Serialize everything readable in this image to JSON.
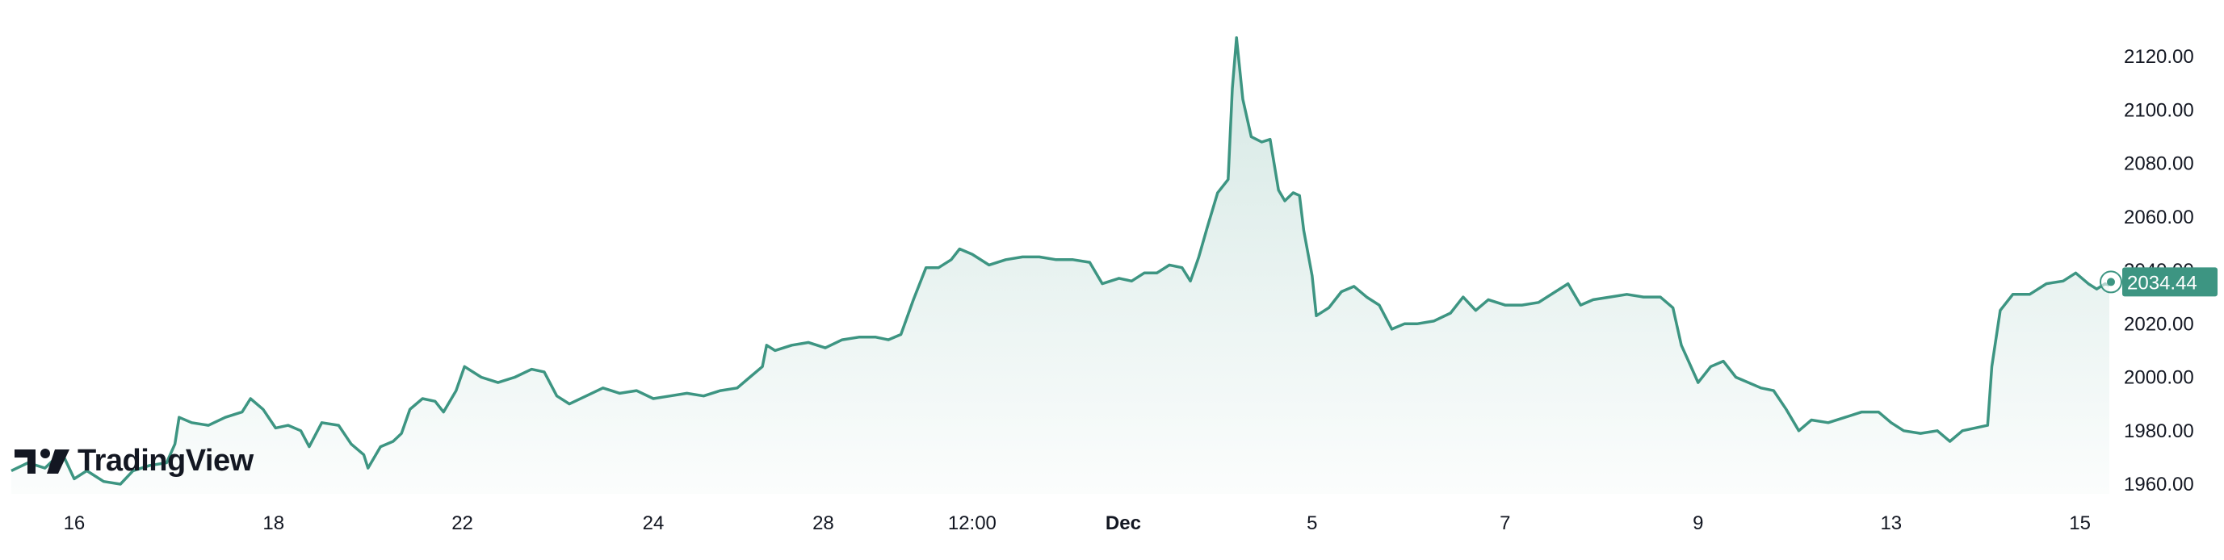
{
  "brand": {
    "name": "TradingView",
    "icon": "tradingview-logo-icon"
  },
  "colors": {
    "line": "#3d9582",
    "fill_top": "#d7ece7",
    "fill_bottom": "#ffffff",
    "label_bg": "#3d9582",
    "text": "#131722"
  },
  "chart_data": {
    "type": "area",
    "title": "",
    "xlabel": "",
    "ylabel": "",
    "ylim": [
      1955,
      2128
    ],
    "y_ticks": [
      "2120.00",
      "2100.00",
      "2080.00",
      "2060.00",
      "2040.00",
      "2020.00",
      "2000.00",
      "1980.00",
      "1960.00"
    ],
    "x_ticks": [
      {
        "label": "16",
        "bold": false,
        "t": 0.03
      },
      {
        "label": "18",
        "bold": false,
        "t": 0.125
      },
      {
        "label": "22",
        "bold": false,
        "t": 0.215
      },
      {
        "label": "24",
        "bold": false,
        "t": 0.306
      },
      {
        "label": "28",
        "bold": false,
        "t": 0.387
      },
      {
        "label": "12:00",
        "bold": false,
        "t": 0.458
      },
      {
        "label": "Dec",
        "bold": true,
        "t": 0.53
      },
      {
        "label": "5",
        "bold": false,
        "t": 0.62
      },
      {
        "label": "7",
        "bold": false,
        "t": 0.712
      },
      {
        "label": "9",
        "bold": false,
        "t": 0.804
      },
      {
        "label": "13",
        "bold": false,
        "t": 0.896
      },
      {
        "label": "15",
        "bold": false,
        "t": 0.986
      }
    ],
    "last_price": "2034.44",
    "series": [
      {
        "values": [
          [
            0.0,
            1965
          ],
          [
            0.008,
            1968
          ],
          [
            0.016,
            1966
          ],
          [
            0.024,
            1972
          ],
          [
            0.03,
            1962
          ],
          [
            0.036,
            1965
          ],
          [
            0.044,
            1961
          ],
          [
            0.052,
            1960
          ],
          [
            0.058,
            1965
          ],
          [
            0.066,
            1967
          ],
          [
            0.074,
            1968
          ],
          [
            0.078,
            1975
          ],
          [
            0.08,
            1985
          ],
          [
            0.086,
            1983
          ],
          [
            0.094,
            1982
          ],
          [
            0.102,
            1985
          ],
          [
            0.11,
            1987
          ],
          [
            0.114,
            1992
          ],
          [
            0.12,
            1988
          ],
          [
            0.126,
            1981
          ],
          [
            0.132,
            1982
          ],
          [
            0.138,
            1980
          ],
          [
            0.142,
            1974
          ],
          [
            0.148,
            1983
          ],
          [
            0.156,
            1982
          ],
          [
            0.162,
            1975
          ],
          [
            0.168,
            1971
          ],
          [
            0.17,
            1966
          ],
          [
            0.176,
            1974
          ],
          [
            0.182,
            1976
          ],
          [
            0.186,
            1979
          ],
          [
            0.19,
            1988
          ],
          [
            0.196,
            1992
          ],
          [
            0.202,
            1991
          ],
          [
            0.206,
            1987
          ],
          [
            0.212,
            1995
          ],
          [
            0.216,
            2004
          ],
          [
            0.224,
            2000
          ],
          [
            0.232,
            1998
          ],
          [
            0.24,
            2000
          ],
          [
            0.248,
            2003
          ],
          [
            0.254,
            2002
          ],
          [
            0.26,
            1993
          ],
          [
            0.266,
            1990
          ],
          [
            0.274,
            1993
          ],
          [
            0.282,
            1996
          ],
          [
            0.29,
            1994
          ],
          [
            0.298,
            1995
          ],
          [
            0.306,
            1992
          ],
          [
            0.314,
            1993
          ],
          [
            0.322,
            1994
          ],
          [
            0.33,
            1993
          ],
          [
            0.338,
            1995
          ],
          [
            0.346,
            1996
          ],
          [
            0.352,
            2000
          ],
          [
            0.358,
            2004
          ],
          [
            0.36,
            2012
          ],
          [
            0.364,
            2010
          ],
          [
            0.372,
            2012
          ],
          [
            0.38,
            2013
          ],
          [
            0.388,
            2011
          ],
          [
            0.396,
            2014
          ],
          [
            0.404,
            2015
          ],
          [
            0.412,
            2015
          ],
          [
            0.418,
            2014
          ],
          [
            0.424,
            2016
          ],
          [
            0.43,
            2029
          ],
          [
            0.436,
            2041
          ],
          [
            0.442,
            2041
          ],
          [
            0.448,
            2044
          ],
          [
            0.452,
            2048
          ],
          [
            0.458,
            2046
          ],
          [
            0.466,
            2042
          ],
          [
            0.474,
            2044
          ],
          [
            0.482,
            2045
          ],
          [
            0.49,
            2045
          ],
          [
            0.498,
            2044
          ],
          [
            0.506,
            2044
          ],
          [
            0.514,
            2043
          ],
          [
            0.52,
            2035
          ],
          [
            0.528,
            2037
          ],
          [
            0.534,
            2036
          ],
          [
            0.54,
            2039
          ],
          [
            0.546,
            2039
          ],
          [
            0.552,
            2042
          ],
          [
            0.558,
            2041
          ],
          [
            0.562,
            2036
          ],
          [
            0.566,
            2045
          ],
          [
            0.57,
            2056
          ],
          [
            0.575,
            2069
          ],
          [
            0.58,
            2074
          ],
          [
            0.582,
            2108
          ],
          [
            0.584,
            2127
          ],
          [
            0.587,
            2104
          ],
          [
            0.591,
            2090
          ],
          [
            0.596,
            2088
          ],
          [
            0.6,
            2089
          ],
          [
            0.604,
            2070
          ],
          [
            0.607,
            2066
          ],
          [
            0.611,
            2069
          ],
          [
            0.614,
            2068
          ],
          [
            0.616,
            2055
          ],
          [
            0.62,
            2038
          ],
          [
            0.622,
            2023
          ],
          [
            0.628,
            2026
          ],
          [
            0.634,
            2032
          ],
          [
            0.64,
            2034
          ],
          [
            0.646,
            2030
          ],
          [
            0.652,
            2027
          ],
          [
            0.658,
            2018
          ],
          [
            0.664,
            2020
          ],
          [
            0.67,
            2020
          ],
          [
            0.678,
            2021
          ],
          [
            0.686,
            2024
          ],
          [
            0.692,
            2030
          ],
          [
            0.698,
            2025
          ],
          [
            0.704,
            2029
          ],
          [
            0.712,
            2027
          ],
          [
            0.72,
            2027
          ],
          [
            0.728,
            2028
          ],
          [
            0.736,
            2032
          ],
          [
            0.742,
            2035
          ],
          [
            0.748,
            2027
          ],
          [
            0.754,
            2029
          ],
          [
            0.762,
            2030
          ],
          [
            0.77,
            2031
          ],
          [
            0.778,
            2030
          ],
          [
            0.786,
            2030
          ],
          [
            0.792,
            2026
          ],
          [
            0.796,
            2012
          ],
          [
            0.8,
            2005
          ],
          [
            0.804,
            1998
          ],
          [
            0.81,
            2004
          ],
          [
            0.816,
            2006
          ],
          [
            0.822,
            2000
          ],
          [
            0.828,
            1998
          ],
          [
            0.834,
            1996
          ],
          [
            0.84,
            1995
          ],
          [
            0.846,
            1988
          ],
          [
            0.852,
            1980
          ],
          [
            0.858,
            1984
          ],
          [
            0.866,
            1983
          ],
          [
            0.874,
            1985
          ],
          [
            0.882,
            1987
          ],
          [
            0.89,
            1987
          ],
          [
            0.896,
            1983
          ],
          [
            0.902,
            1980
          ],
          [
            0.91,
            1979
          ],
          [
            0.918,
            1980
          ],
          [
            0.924,
            1976
          ],
          [
            0.93,
            1980
          ],
          [
            0.936,
            1981
          ],
          [
            0.942,
            1982
          ],
          [
            0.944,
            2004
          ],
          [
            0.948,
            2025
          ],
          [
            0.954,
            2031
          ],
          [
            0.962,
            2031
          ],
          [
            0.97,
            2035
          ],
          [
            0.978,
            2036
          ],
          [
            0.984,
            2039
          ],
          [
            0.99,
            2035
          ],
          [
            0.994,
            2033
          ],
          [
            0.998,
            2035
          ],
          [
            1.0,
            2034.44
          ]
        ]
      }
    ]
  }
}
